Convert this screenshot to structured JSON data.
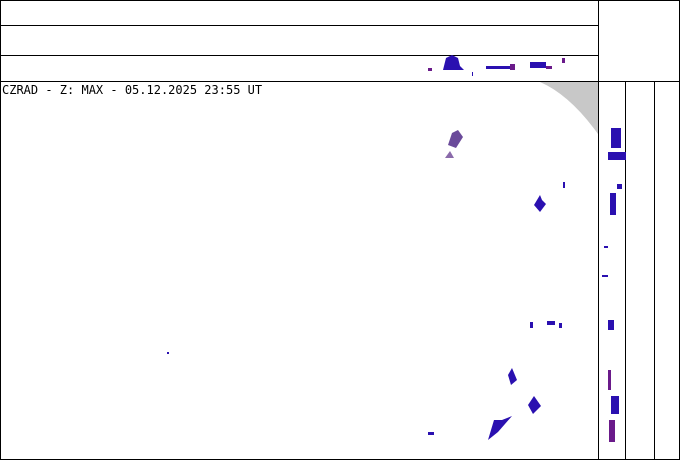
{
  "title": "CZRAD - Z: MAX - 05.12.2025 23:55 UT"
}
